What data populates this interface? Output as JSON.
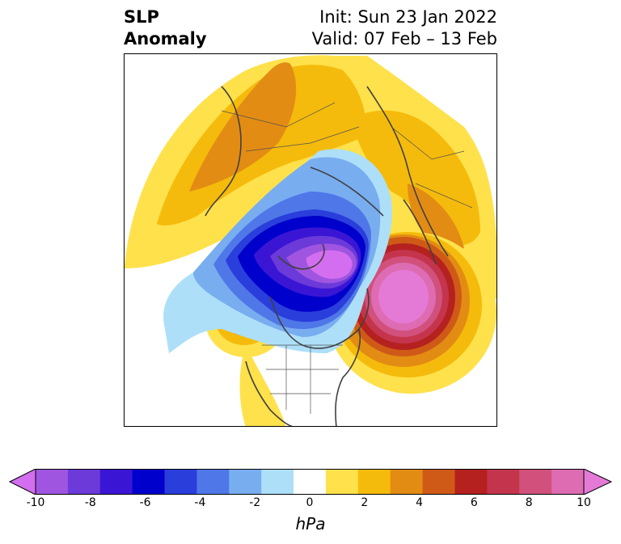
{
  "header": {
    "variable": "SLP",
    "type": "Anomaly",
    "init": "Init: Sun 23 Jan 2022",
    "valid": "Valid: 07 Feb – 13 Feb"
  },
  "colorbar": {
    "units": "hPa",
    "ticks": [
      "-10",
      "-8",
      "-6",
      "-4",
      "-2",
      "0",
      "2",
      "4",
      "6",
      "8",
      "10"
    ],
    "levels": [
      -10,
      -9,
      -8,
      -7,
      -6,
      -5,
      -4,
      -3,
      -2,
      -1,
      1,
      2,
      3,
      4,
      5,
      6,
      7,
      8,
      9,
      10
    ],
    "colors": [
      "#d46ef0",
      "#a055e0",
      "#6b3ad9",
      "#3a16d4",
      "#0000cc",
      "#2a3edb",
      "#4f77e8",
      "#78adf0",
      "#addff9",
      "#ffffff",
      "#ffe14b",
      "#f5bb0c",
      "#e38c14",
      "#cf5a17",
      "#b5211f",
      "#c4354d",
      "#d1517c",
      "#dd6cb3",
      "#e57ad6"
    ]
  }
}
